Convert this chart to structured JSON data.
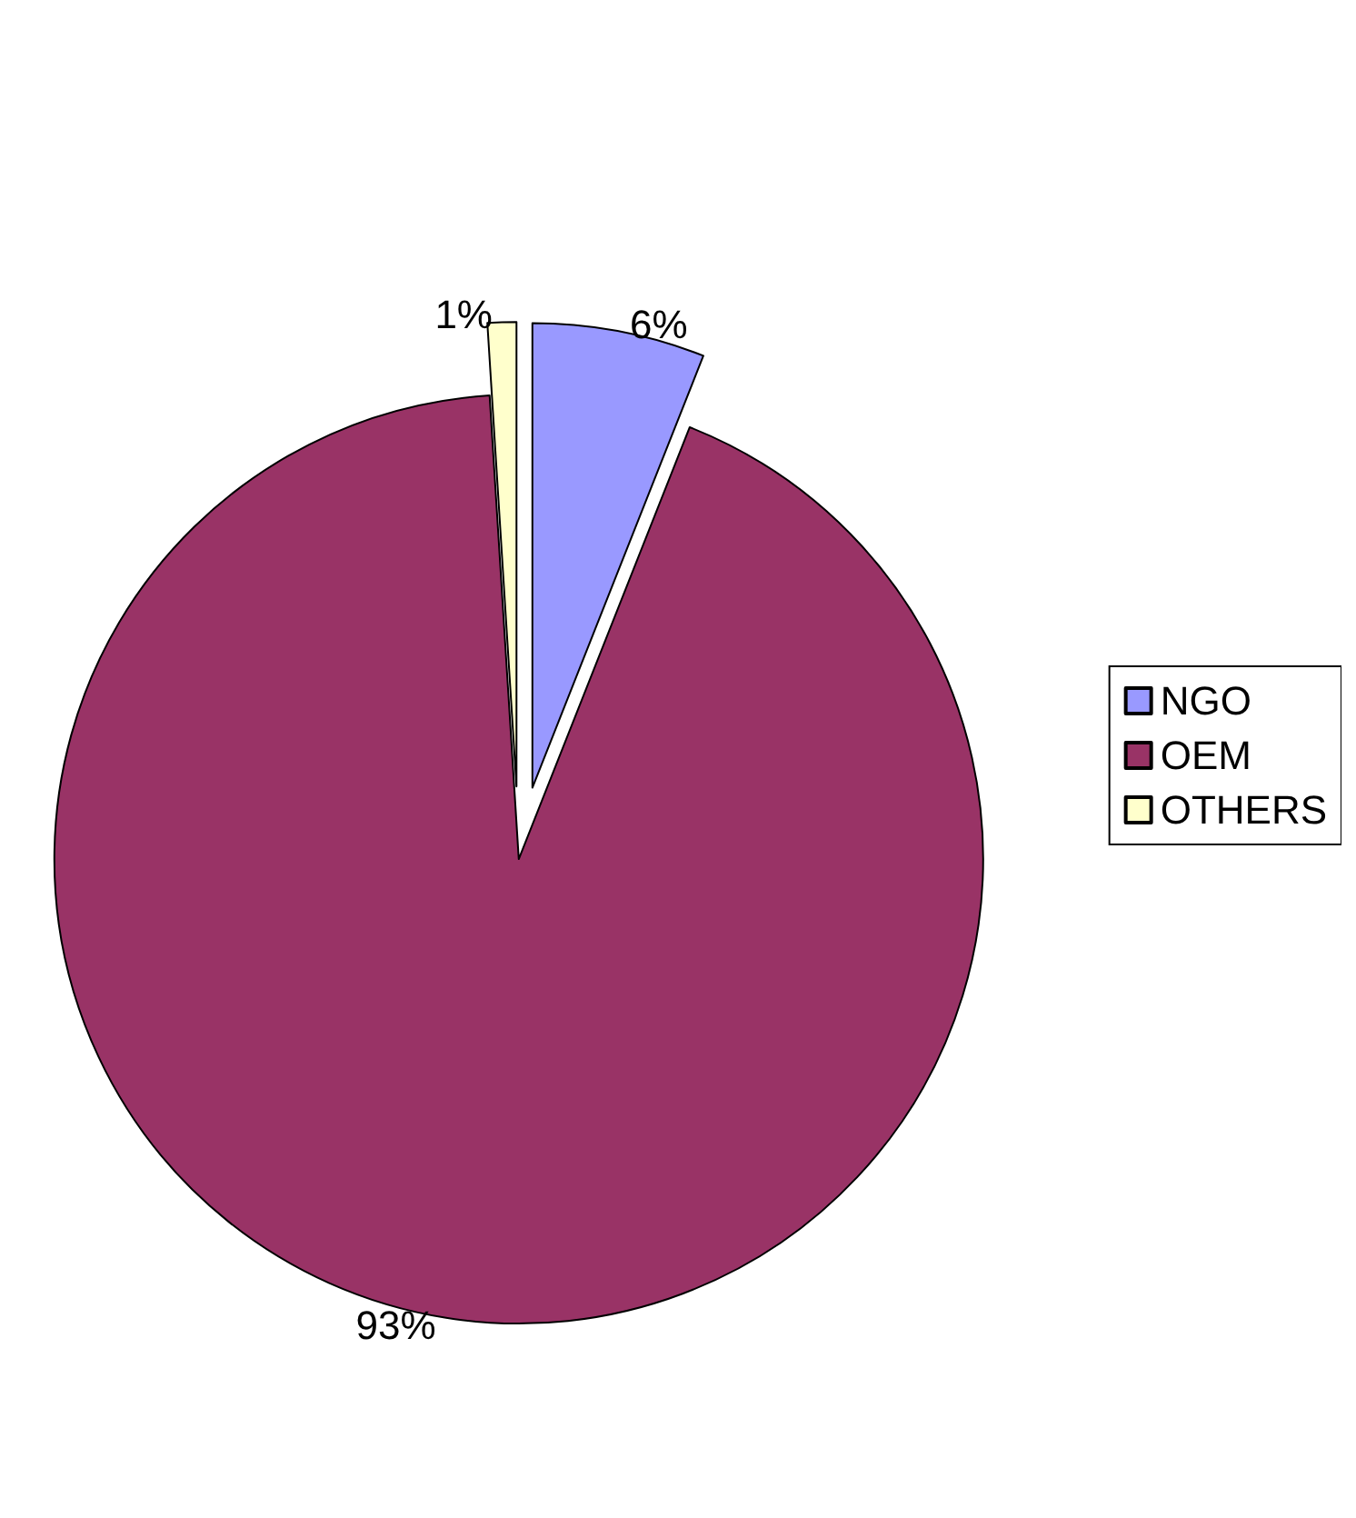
{
  "chart_data": {
    "type": "pie",
    "categories": [
      "NGO",
      "OEM",
      "OTHERS"
    ],
    "values": [
      6,
      93,
      1
    ],
    "colors": [
      "#9999ff",
      "#993366",
      "#ffffcc"
    ],
    "value_labels": [
      "6%",
      "93%",
      "1%"
    ],
    "legend": "right"
  }
}
